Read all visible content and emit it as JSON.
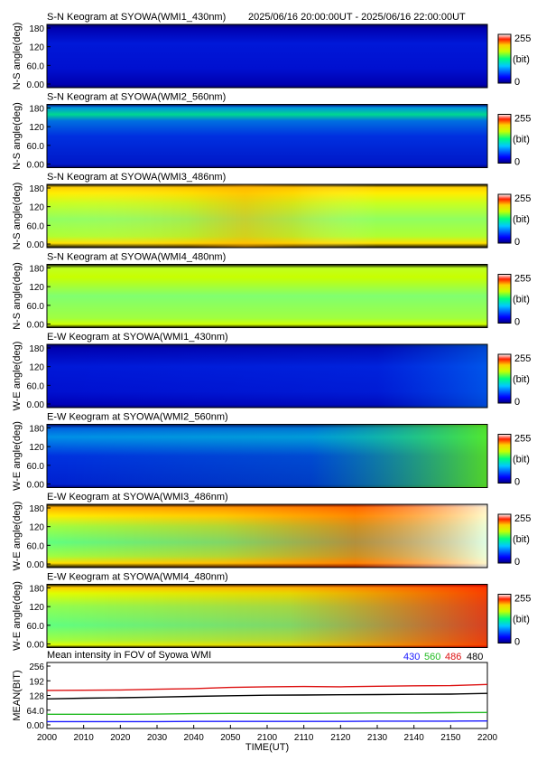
{
  "header": {
    "period": "2025/06/16 20:00:00UT - 2025/06/16 22:00:00UT"
  },
  "colorbar": {
    "max_label": "255",
    "unit_label": "(bit)",
    "min_label": "0"
  },
  "panels": [
    {
      "title": "S-N Keogram at SYOWA(WMI1_430nm)",
      "ylabel": "N-S angle(deg)",
      "yticks": [
        "180",
        "120",
        "60.0",
        "0.00"
      ],
      "scheme": "sn430"
    },
    {
      "title": "S-N Keogram at SYOWA(WMI2_560nm)",
      "ylabel": "N-S angle(deg)",
      "yticks": [
        "180",
        "120",
        "60.0",
        "0.00"
      ],
      "scheme": "sn560"
    },
    {
      "title": "S-N Keogram at SYOWA(WMI3_486nm)",
      "ylabel": "N-S angle(deg)",
      "yticks": [
        "180",
        "120",
        "60.0",
        "0.00"
      ],
      "scheme": "sn486"
    },
    {
      "title": "S-N Keogram at SYOWA(WMI4_480nm)",
      "ylabel": "N-S angle(deg)",
      "yticks": [
        "180",
        "120",
        "60.0",
        "0.00"
      ],
      "scheme": "sn480"
    },
    {
      "title": "E-W Keogram at SYOWA(WMI1_430nm)",
      "ylabel": "W-E angle(deg)",
      "yticks": [
        "180",
        "120",
        "60.0",
        "0.00"
      ],
      "scheme": "ew430"
    },
    {
      "title": "E-W Keogram at SYOWA(WMI2_560nm)",
      "ylabel": "W-E angle(deg)",
      "yticks": [
        "180",
        "120",
        "60.0",
        "0.00"
      ],
      "scheme": "ew560"
    },
    {
      "title": "E-W Keogram at SYOWA(WMI3_486nm)",
      "ylabel": "W-E angle(deg)",
      "yticks": [
        "180",
        "120",
        "60.0",
        "0.00"
      ],
      "scheme": "ew486"
    },
    {
      "title": "E-W Keogram at SYOWA(WMI4_480nm)",
      "ylabel": "W-E angle(deg)",
      "yticks": [
        "180",
        "120",
        "60.0",
        "0.00"
      ],
      "scheme": "ew480"
    }
  ],
  "chart_data": {
    "type": "line",
    "title": "Mean intensity in FOV of Syowa WMI",
    "xlabel": "TIME(UT)",
    "ylabel": "MEAN(BIT)",
    "x_ticks": [
      "2000",
      "2010",
      "2020",
      "2030",
      "2040",
      "2050",
      "2100",
      "2110",
      "2120",
      "2130",
      "2140",
      "2150",
      "2200"
    ],
    "y_ticks": [
      "256",
      "192",
      "128",
      "64.0",
      "0.00"
    ],
    "ylim": [
      0,
      256
    ],
    "x_minutes": [
      0,
      10,
      20,
      30,
      40,
      50,
      60,
      70,
      80,
      90,
      100,
      110,
      120
    ],
    "series": [
      {
        "name": "430",
        "color": "#1a1aff",
        "values": [
          14,
          14,
          14,
          14,
          15,
          15,
          15,
          15,
          15,
          16,
          16,
          16,
          17
        ]
      },
      {
        "name": "560",
        "color": "#22bb22",
        "values": [
          46,
          46,
          46,
          47,
          49,
          50,
          50,
          50,
          51,
          52,
          52,
          53,
          54
        ]
      },
      {
        "name": "486",
        "color": "#dd1111",
        "values": [
          150,
          151,
          152,
          155,
          158,
          163,
          166,
          167,
          166,
          168,
          170,
          171,
          176
        ]
      },
      {
        "name": "480",
        "color": "#000000",
        "values": [
          113,
          116,
          118,
          121,
          124,
          127,
          129,
          130,
          131,
          132,
          133,
          134,
          137
        ]
      }
    ]
  }
}
